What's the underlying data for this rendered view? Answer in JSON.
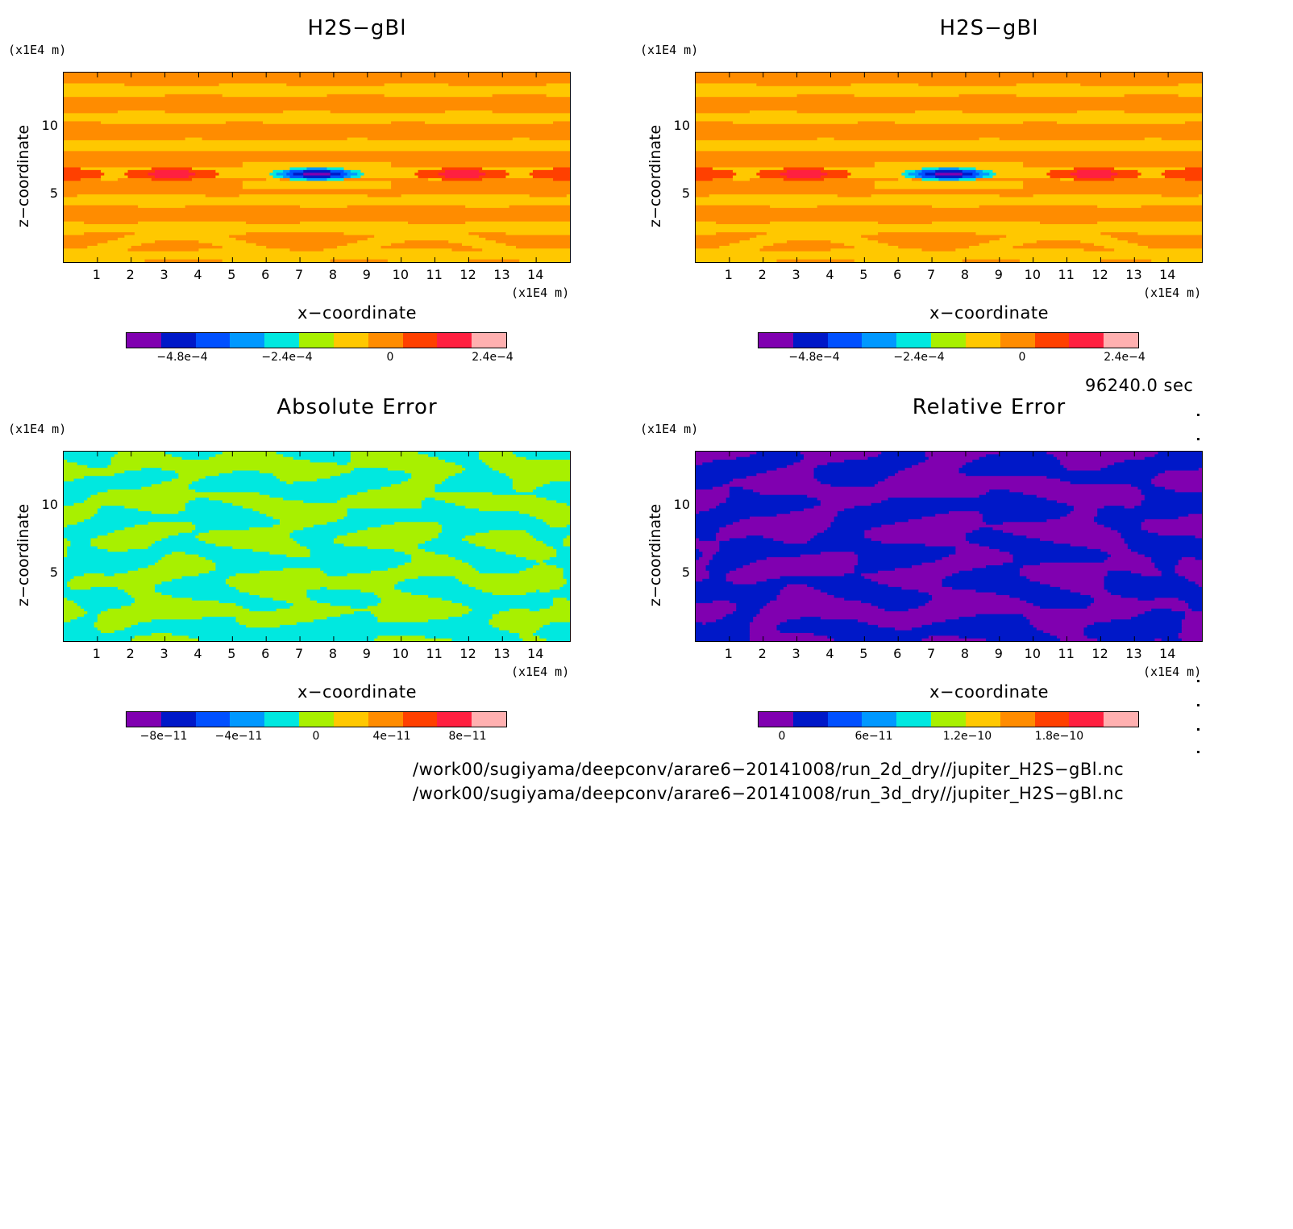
{
  "palette": [
    "#8000b0",
    "#0018c8",
    "#0050ff",
    "#0098ff",
    "#00e8e0",
    "#a8f000",
    "#ffc800",
    "#ff8c00",
    "#ff4000",
    "#ff2040",
    "#ffb0b0"
  ],
  "panels": [
    {
      "title": "H2S−gBl",
      "yunit": "(x1E4 m)",
      "xunit": "(x1E4 m)",
      "xlabel": "x−coordinate",
      "ylabel": "z−coordinate",
      "cb_ticks": [
        "−4.8e−4",
        "−2.4e−4",
        "0",
        "2.4e−4"
      ]
    },
    {
      "title": "H2S−gBl",
      "yunit": "(x1E4 m)",
      "xunit": "(x1E4 m)",
      "xlabel": "x−coordinate",
      "ylabel": "z−coordinate",
      "cb_ticks": [
        "−4.8e−4",
        "−2.4e−4",
        "0",
        "2.4e−4"
      ]
    },
    {
      "title": "Absolute Error",
      "yunit": "(x1E4 m)",
      "xunit": "(x1E4 m)",
      "xlabel": "x−coordinate",
      "ylabel": "z−coordinate",
      "cb_ticks": [
        "−8e−11",
        "−4e−11",
        "0",
        "4e−11",
        "8e−11"
      ]
    },
    {
      "title": "Relative Error",
      "yunit": "(x1E4 m)",
      "xunit": "(x1E4 m)",
      "xlabel": "x−coordinate",
      "ylabel": "z−coordinate",
      "cb_ticks": [
        "0",
        "6e−11",
        "1.2e−10",
        "1.8e−10"
      ]
    }
  ],
  "x_ticks": [
    "1",
    "2",
    "3",
    "4",
    "5",
    "6",
    "7",
    "8",
    "9",
    "10",
    "11",
    "12",
    "13",
    "14"
  ],
  "z_ticks": [
    "5",
    "10"
  ],
  "timestamp": "96240.0 sec",
  "footer": [
    "/work00/sugiyama/deepconv/arare6−20141008/run_2d_dry//jupiter_H2S−gBl.nc",
    "/work00/sugiyama/deepconv/arare6−20141008/run_3d_dry//jupiter_H2S−gBl.nc"
  ],
  "chart_data": [
    {
      "type": "heatmap",
      "title": "H2S−gBl",
      "xlabel": "x−coordinate",
      "ylabel": "z−coordinate",
      "xunit": "(x1E4 m)",
      "yunit": "(x1E4 m)",
      "xlim": [
        0,
        15
      ],
      "ylim": [
        0,
        14
      ],
      "colorbar_ticks": [
        -0.00048,
        -0.00024,
        0,
        0.00024
      ],
      "note_min_region": {
        "x": 7.5,
        "z": 6.5
      }
    },
    {
      "type": "heatmap",
      "title": "H2S−gBl",
      "xlabel": "x−coordinate",
      "ylabel": "z−coordinate",
      "xunit": "(x1E4 m)",
      "yunit": "(x1E4 m)",
      "xlim": [
        0,
        15
      ],
      "ylim": [
        0,
        14
      ],
      "colorbar_ticks": [
        -0.00048,
        -0.00024,
        0,
        0.00024
      ]
    },
    {
      "type": "heatmap",
      "title": "Absolute Error",
      "xlabel": "x−coordinate",
      "ylabel": "z−coordinate",
      "xunit": "(x1E4 m)",
      "yunit": "(x1E4 m)",
      "xlim": [
        0,
        15
      ],
      "ylim": [
        0,
        14
      ],
      "colorbar_ticks": [
        -8e-11,
        -4e-11,
        0,
        4e-11,
        8e-11
      ]
    },
    {
      "type": "heatmap",
      "title": "Relative Error",
      "xlabel": "x−coordinate",
      "ylabel": "z−coordinate",
      "xunit": "(x1E4 m)",
      "yunit": "(x1E4 m)",
      "xlim": [
        0,
        15
      ],
      "ylim": [
        0,
        14
      ],
      "colorbar_ticks": [
        0,
        6e-11,
        1.2e-10,
        1.8e-10
      ]
    }
  ]
}
